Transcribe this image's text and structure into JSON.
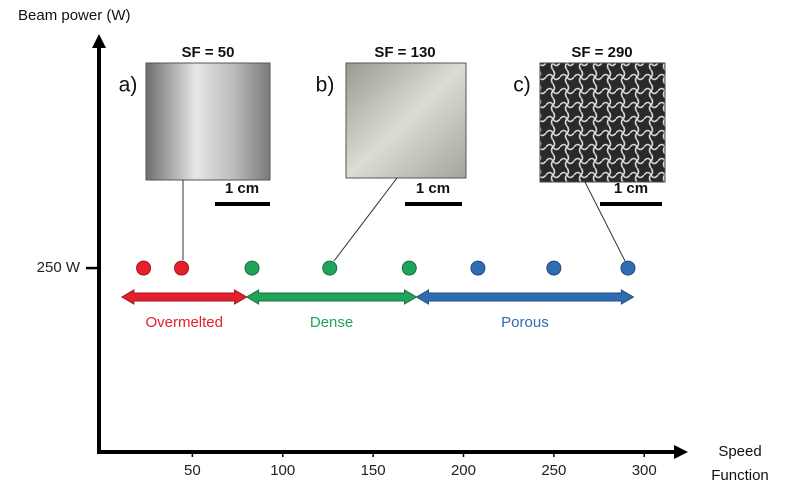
{
  "chart_data": {
    "type": "scatter",
    "ylabel": "Beam power (W)",
    "xlabel": "Speed Function",
    "xlim": [
      0,
      322
    ],
    "xticks": [
      50,
      100,
      150,
      200,
      250,
      300
    ],
    "ylim": [
      0,
      560
    ],
    "yticks": [
      {
        "value": 250,
        "label": "250 W"
      }
    ],
    "series": [
      {
        "name": "Overmelted",
        "color": "#e3202b",
        "x": [
          23,
          44
        ],
        "y": [
          250,
          250
        ],
        "range": [
          11,
          80
        ]
      },
      {
        "name": "Dense",
        "color": "#20a35b",
        "x": [
          83,
          126,
          170
        ],
        "y": [
          250,
          250,
          250
        ],
        "range": [
          80,
          174
        ]
      },
      {
        "name": "Porous",
        "color": "#2f6db3",
        "x": [
          208,
          250,
          291
        ],
        "y": [
          250,
          250,
          250
        ],
        "range": [
          174,
          294
        ]
      }
    ],
    "insets": [
      {
        "panel": "a)",
        "title": "SF = 50",
        "scale": "1 cm"
      },
      {
        "panel": "b)",
        "title": "SF = 130",
        "scale": "1 cm"
      },
      {
        "panel": "c)",
        "title": "SF = 290",
        "scale": "1 cm"
      }
    ]
  }
}
